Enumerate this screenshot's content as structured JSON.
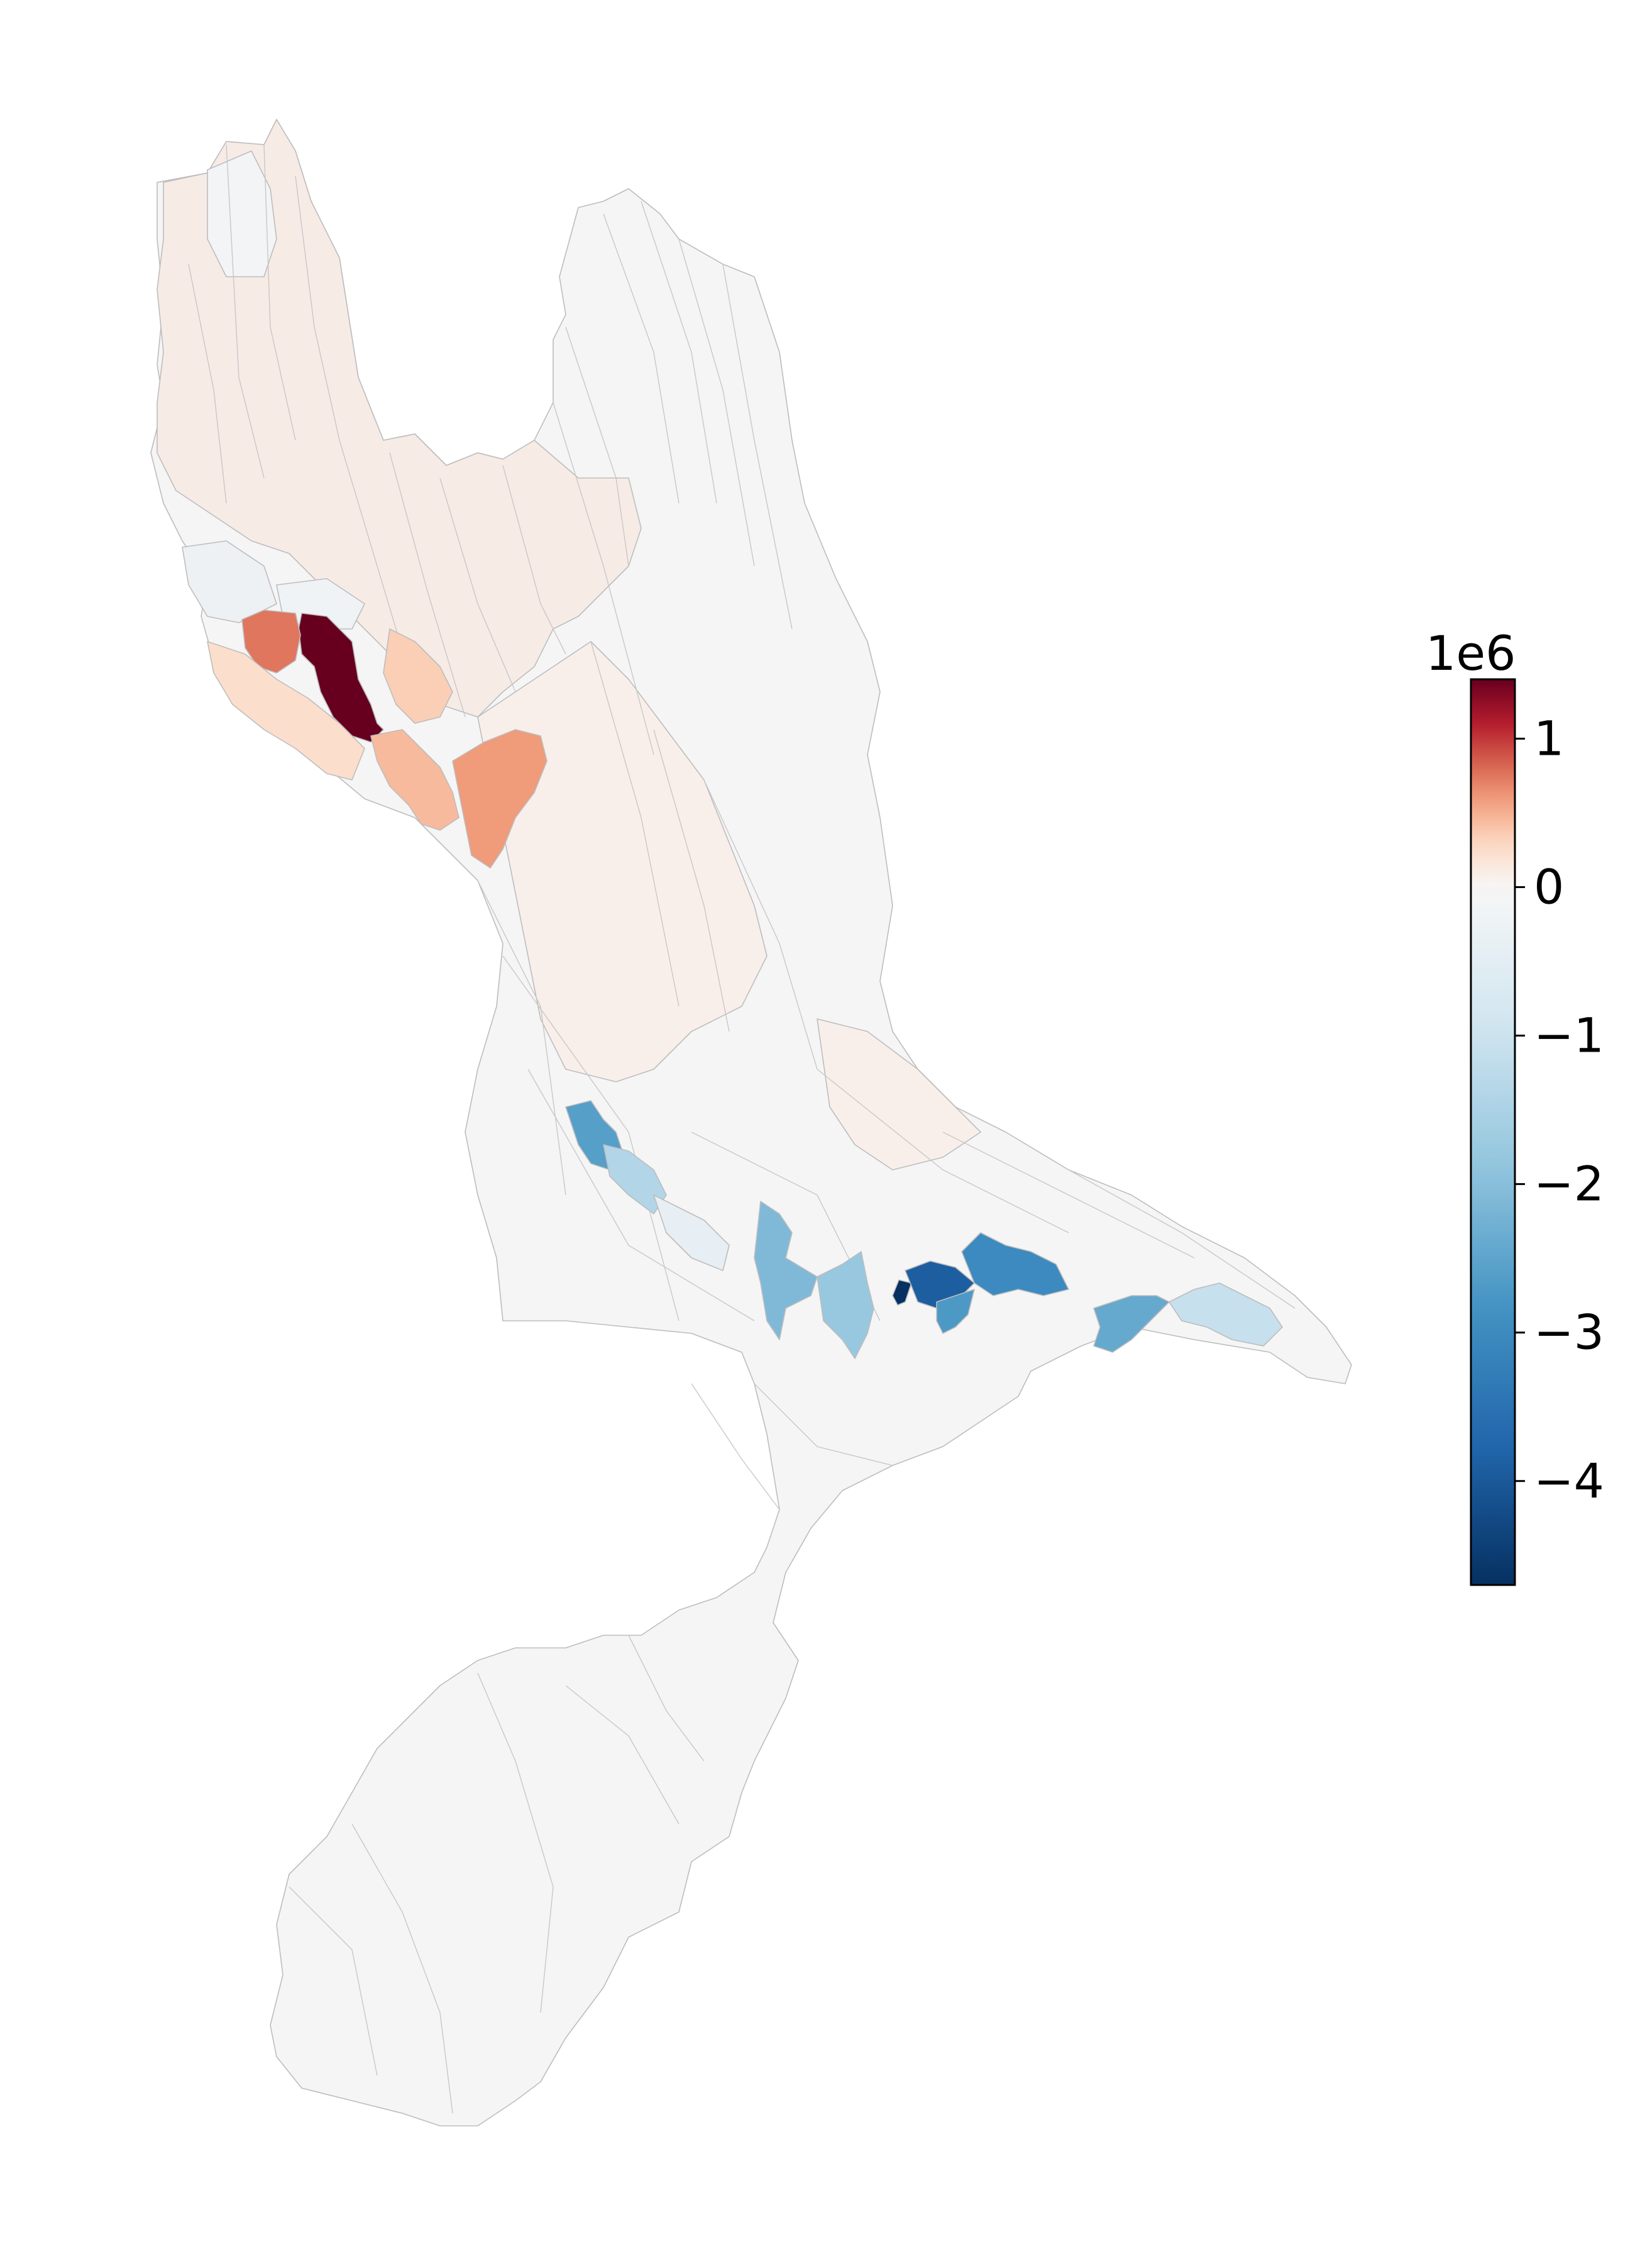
{
  "colormap": {
    "name": "RdBu_r",
    "min": -4.7,
    "max": 1.4,
    "stops": [
      "#053061",
      "#2166ac",
      "#4393c3",
      "#92c5de",
      "#d1e5f0",
      "#f7f7f7",
      "#fddbc7",
      "#f4a582",
      "#d6604d",
      "#b2182b",
      "#67001f"
    ],
    "no_change_fill": "#f5f5f5",
    "boundary_color": "#bdbdbd"
  },
  "colorbar": {
    "exponent_label": "1e6",
    "ticks": [
      {
        "value": 1,
        "label": "1"
      },
      {
        "value": 0,
        "label": "0"
      },
      {
        "value": -1,
        "label": "−1"
      },
      {
        "value": -2,
        "label": "−2"
      },
      {
        "value": -3,
        "label": "−3"
      },
      {
        "value": -4,
        "label": "−4"
      }
    ]
  },
  "map_data": {
    "type": "choropleth",
    "value_scale": "1e6",
    "highlighted_subbasins": [
      {
        "name": "northwest-max-subbasin",
        "value": 1.4
      },
      {
        "name": "northwest-high-subbasin",
        "value": 0.75
      },
      {
        "name": "west-central-subbasin-a",
        "value": 0.45
      },
      {
        "name": "west-central-subbasin-b",
        "value": 0.6
      },
      {
        "name": "west-mid-subbasin",
        "value": 0.35
      },
      {
        "name": "southwest-band-subbasin",
        "value": 0.25
      },
      {
        "name": "central-valley-subbasin-a",
        "value": -2.6
      },
      {
        "name": "central-valley-subbasin-b",
        "value": -1.4
      },
      {
        "name": "central-valley-subbasin-c",
        "value": -0.4
      },
      {
        "name": "east-valley-subbasin-a",
        "value": -2.1
      },
      {
        "name": "east-valley-subbasin-b",
        "value": -1.8
      },
      {
        "name": "east-min-subbasin",
        "value": -4.7
      },
      {
        "name": "east-low-subbasin",
        "value": -3.9
      },
      {
        "name": "east-arm-subbasin-a",
        "value": -3.0
      },
      {
        "name": "east-arm-subbasin-b",
        "value": -2.7
      },
      {
        "name": "east-arm-subbasin-c",
        "value": -2.4
      },
      {
        "name": "east-tip-subbasin",
        "value": -1.1
      }
    ]
  }
}
